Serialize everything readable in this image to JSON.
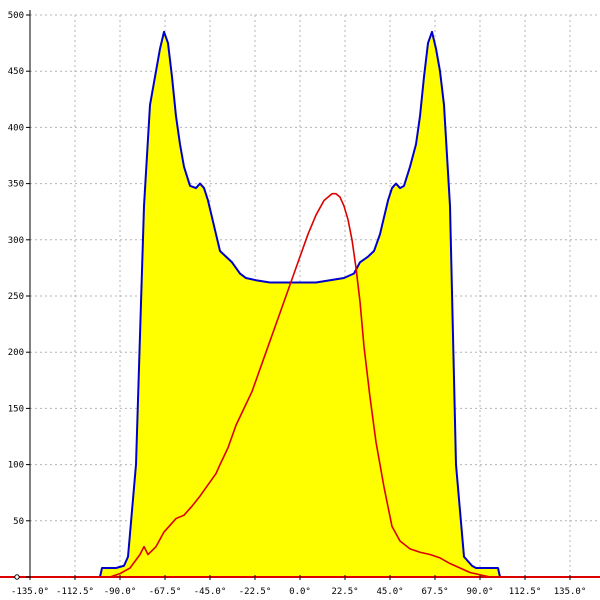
{
  "chart_data": {
    "type": "area",
    "xlim": [
      -135,
      135
    ],
    "ylim": [
      0,
      500
    ],
    "x_ticks": [
      -135,
      -112.5,
      -90,
      -67.5,
      -45,
      -22.5,
      0,
      22.5,
      45,
      67.5,
      90,
      112.5,
      135
    ],
    "x_tick_labels": [
      "-135.0°",
      "-112.5°",
      "-90.0°",
      "-67.5°",
      "-45.0°",
      "-22.5°",
      "0.0°",
      "22.5°",
      "45.0°",
      "67.5°",
      "90.0°",
      "112.5°",
      "135.0°"
    ],
    "y_ticks": [
      0,
      50,
      100,
      150,
      200,
      250,
      300,
      350,
      400,
      450,
      500
    ],
    "y_tick_labels": [
      "",
      "50",
      "100",
      "150",
      "200",
      "250",
      "300",
      "350",
      "400",
      "450",
      "500"
    ],
    "grid": true,
    "colors": {
      "fill": "#ffff00",
      "outline": "#0000cc",
      "series2": "#dd0000",
      "axis_baseline": "#dd0000"
    },
    "series": [
      {
        "style": "filled area with blue outline",
        "x": [
          -135,
          -100,
          -99,
          -97,
          -92,
          -88,
          -86,
          -82,
          -78,
          -75,
          -72,
          -70,
          -68,
          -66,
          -64,
          -62,
          -60,
          -58,
          -55,
          -52,
          -50,
          -48,
          -46,
          -44,
          -42,
          -40,
          -37,
          -34,
          -30,
          -27,
          -22,
          -15,
          -8,
          0,
          8,
          15,
          22,
          27,
          30,
          34,
          37,
          40,
          42,
          44,
          46,
          48,
          50,
          52,
          55,
          58,
          60,
          62,
          64,
          66,
          68,
          70,
          72,
          75,
          78,
          82,
          86,
          88,
          92,
          97,
          99,
          100,
          135
        ],
        "y": [
          0,
          0,
          8,
          8,
          8,
          10,
          18,
          100,
          330,
          420,
          450,
          470,
          485,
          475,
          445,
          410,
          385,
          365,
          348,
          346,
          350,
          346,
          335,
          320,
          305,
          290,
          285,
          280,
          270,
          266,
          264,
          262,
          262,
          262,
          262,
          264,
          266,
          270,
          280,
          285,
          290,
          305,
          320,
          335,
          346,
          350,
          346,
          348,
          365,
          385,
          410,
          445,
          475,
          485,
          470,
          450,
          420,
          330,
          100,
          18,
          10,
          8,
          8,
          8,
          8,
          0,
          0
        ]
      },
      {
        "style": "red line",
        "x": [
          -135,
          -95,
          -90,
          -85,
          -80,
          -78,
          -76,
          -72,
          -68,
          -62,
          -58,
          -54,
          -50,
          -46,
          -42,
          -40,
          -36,
          -32,
          -28,
          -24,
          -20,
          -16,
          -12,
          -8,
          -4,
          0,
          4,
          8,
          12,
          16,
          18,
          20,
          22,
          24,
          26,
          28,
          30,
          32,
          35,
          38,
          42,
          46,
          50,
          55,
          60,
          65,
          70,
          75,
          80,
          85,
          90,
          95,
          135
        ],
        "y": [
          0,
          0,
          3,
          8,
          20,
          27,
          20,
          27,
          40,
          52,
          55,
          63,
          72,
          82,
          92,
          100,
          115,
          135,
          150,
          165,
          185,
          205,
          225,
          245,
          265,
          285,
          305,
          322,
          335,
          341,
          341,
          338,
          330,
          318,
          300,
          275,
          245,
          205,
          160,
          120,
          80,
          45,
          32,
          25,
          22,
          20,
          17,
          12,
          8,
          4,
          2,
          0,
          0
        ]
      }
    ]
  }
}
